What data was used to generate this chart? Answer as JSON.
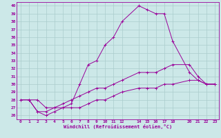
{
  "xlabel": "Windchill (Refroidissement éolien,°C)",
  "bg_color": "#cce8e8",
  "line_color": "#990099",
  "grid_color": "#aacccc",
  "xlim": [
    -0.5,
    23.5
  ],
  "ylim": [
    25.5,
    40.5
  ],
  "xticks": [
    0,
    1,
    2,
    3,
    4,
    5,
    6,
    7,
    8,
    9,
    10,
    11,
    12,
    14,
    15,
    16,
    17,
    18,
    20,
    21,
    22,
    23
  ],
  "yticks": [
    26,
    27,
    28,
    29,
    30,
    31,
    32,
    33,
    34,
    35,
    36,
    37,
    38,
    39,
    40
  ],
  "line1_x": [
    0,
    1,
    2,
    3,
    4,
    5,
    6,
    7,
    8,
    9,
    10,
    11,
    12,
    14,
    15,
    16,
    17,
    18,
    20,
    21,
    22,
    23
  ],
  "line1_y": [
    28,
    28,
    28,
    27,
    27,
    27,
    27.5,
    30,
    32.5,
    33,
    35,
    36,
    38,
    40,
    39.5,
    39,
    39,
    35.5,
    31.5,
    30.5,
    30,
    30
  ],
  "line2_x": [
    1,
    2,
    3,
    4,
    5,
    6,
    7,
    8,
    9,
    10,
    11,
    12,
    14,
    15,
    16,
    17,
    18,
    20,
    21,
    22,
    23
  ],
  "line2_y": [
    28,
    26.5,
    26.5,
    27,
    27.5,
    28,
    28.5,
    29,
    29.5,
    29.5,
    30,
    30.5,
    31.5,
    31.5,
    31.5,
    32,
    32.5,
    32.5,
    31,
    30,
    30
  ],
  "line3_x": [
    0,
    1,
    2,
    3,
    4,
    5,
    6,
    7,
    8,
    9,
    10,
    11,
    12,
    14,
    15,
    16,
    17,
    18,
    20,
    21,
    22,
    23
  ],
  "line3_y": [
    28,
    28,
    26.5,
    26,
    26.5,
    27,
    27,
    27,
    27.5,
    28,
    28,
    28.5,
    29,
    29.5,
    29.5,
    29.5,
    30,
    30,
    30.5,
    30.5,
    30,
    30
  ]
}
